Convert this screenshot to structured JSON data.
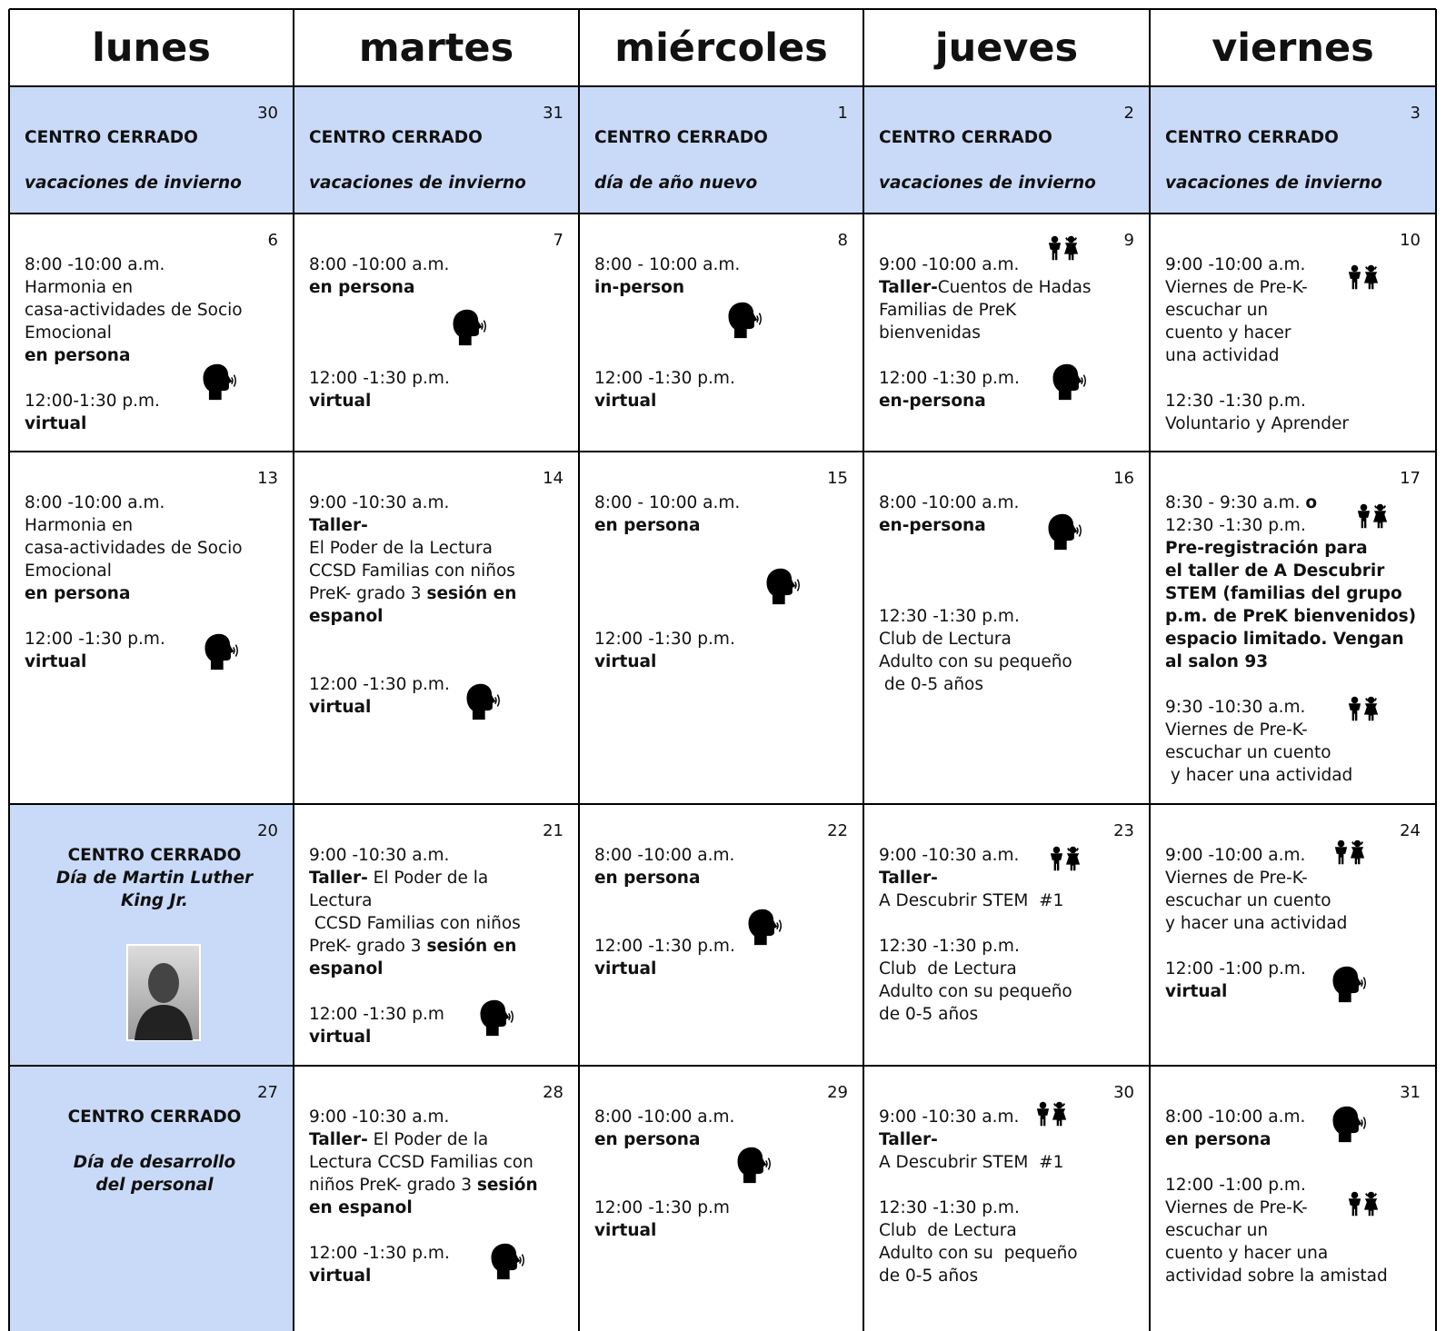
{
  "header": {
    "days": [
      "lunes",
      "martes",
      "miércoles",
      "jueves",
      "viernes"
    ]
  },
  "weeks": [
    {
      "cells": [
        {
          "date": "30",
          "fill": "#c9daf8",
          "blocks": [
            [
              [
                {
                  "text": "CENTRO CERRADO",
                  "bold": true
                }
              ]
            ],
            [
              [
                {
                  "text": "vacaciones de invierno",
                  "bold": true,
                  "italic": true
                }
              ]
            ]
          ]
        },
        {
          "date": "31",
          "fill": "#c9daf8",
          "blocks": [
            [
              [
                {
                  "text": "CENTRO CERRADO",
                  "bold": true
                }
              ]
            ],
            [
              [
                {
                  "text": "vacaciones de invierno",
                  "bold": true,
                  "italic": true
                }
              ]
            ]
          ]
        },
        {
          "date": "1",
          "fill": "#c9daf8",
          "blocks": [
            [
              [
                {
                  "text": "CENTRO CERRADO",
                  "bold": true
                }
              ]
            ],
            [
              [
                {
                  "text": "día de año nuevo",
                  "bold": true,
                  "italic": true
                }
              ]
            ]
          ]
        },
        {
          "date": "2",
          "fill": "#c9daf8",
          "blocks": [
            [
              [
                {
                  "text": "CENTRO CERRADO",
                  "bold": true
                }
              ]
            ],
            [
              [
                {
                  "text": "vacaciones de invierno",
                  "bold": true,
                  "italic": true
                }
              ]
            ]
          ]
        },
        {
          "date": "3",
          "fill": "#c9daf8",
          "blocks": [
            [
              [
                {
                  "text": "CENTRO CERRADO",
                  "bold": true
                }
              ]
            ],
            [
              [
                {
                  "text": "vacaciones de invierno",
                  "bold": true,
                  "italic": true
                }
              ]
            ]
          ]
        }
      ]
    },
    {
      "cells": [
        {
          "date": "6",
          "blocks": [
            [
              [
                "8:00 -10:00 a.m."
              ],
              [
                "Harmonia en"
              ],
              [
                "casa-actividades de Socio"
              ],
              [
                "Emocional"
              ],
              [
                {
                  "text": "en persona",
                  "bold": true
                }
              ]
            ],
            [
              [
                "12:00-1:30 p.m."
              ],
              [
                {
                  "text": "virtual",
                  "bold": true
                }
              ]
            ]
          ]
        },
        {
          "date": "7",
          "blocks": [
            [
              [
                "8:00 -10:00 a.m."
              ],
              [
                {
                  "text": "en persona",
                  "bold": true
                }
              ]
            ],
            [
              [
                "12:00 -1:30 p.m."
              ],
              [
                {
                  "text": "virtual",
                  "bold": true
                }
              ]
            ]
          ]
        },
        {
          "date": "8",
          "blocks": [
            [
              [
                "8:00 - 10:00 a.m."
              ],
              [
                {
                  "text": "in-person",
                  "bold": true
                }
              ]
            ],
            [
              [
                "12:00 -1:30 p.m."
              ],
              [
                {
                  "text": "virtual",
                  "bold": true
                }
              ]
            ]
          ]
        },
        {
          "date": "9",
          "blocks": [
            [
              [
                "9:00 -10:00 a.m."
              ],
              [
                {
                  "text": "Taller-",
                  "bold": true
                },
                "Cuentos de Hadas"
              ],
              [
                "Familias de PreK"
              ],
              [
                "bienvenidas"
              ]
            ],
            [
              [
                "12:00 -1:30 p.m."
              ],
              [
                {
                  "text": "en-persona",
                  "bold": true
                }
              ]
            ]
          ]
        },
        {
          "date": "10",
          "blocks": [
            [
              [
                "9:00 -10:00 a.m."
              ],
              [
                "Viernes de Pre-K-"
              ],
              [
                "escuchar un"
              ],
              [
                "cuento y hacer"
              ],
              [
                "una actividad"
              ]
            ],
            [
              [
                "12:30 -1:30 p.m."
              ],
              [
                "Voluntario y Aprender"
              ]
            ]
          ]
        }
      ]
    },
    {
      "cells": [
        {
          "date": "13",
          "blocks": [
            [
              [
                "8:00 -10:00 a.m."
              ],
              [
                "Harmonia en"
              ],
              [
                "casa-actividades de Socio"
              ],
              [
                "Emocional"
              ],
              [
                {
                  "text": "en persona",
                  "bold": true
                }
              ]
            ],
            [
              [
                "12:00 -1:30 p.m."
              ],
              [
                {
                  "text": "virtual",
                  "bold": true
                }
              ]
            ]
          ]
        },
        {
          "date": "14",
          "blocks": [
            [
              [
                "9:00 -10:30 a.m."
              ],
              [
                {
                  "text": "Taller-",
                  "bold": true
                }
              ],
              [
                "El Poder de la Lectura"
              ],
              [
                "CCSD Familias con niños"
              ],
              [
                "PreK- grado 3 ",
                {
                  "text": "sesión en",
                  "bold": true
                }
              ],
              [
                {
                  "text": "espanol",
                  "bold": true
                }
              ]
            ],
            [
              [
                "12:00 -1:30 p.m."
              ],
              [
                {
                  "text": "virtual",
                  "bold": true
                }
              ]
            ]
          ]
        },
        {
          "date": "15",
          "blocks": [
            [
              [
                "8:00 - 10:00 a.m."
              ],
              [
                {
                  "text": "en persona",
                  "bold": true
                }
              ]
            ],
            [
              [
                "12:00 -1:30 p.m."
              ],
              [
                {
                  "text": "virtual",
                  "bold": true
                }
              ]
            ]
          ]
        },
        {
          "date": "16",
          "blocks": [
            [
              [
                "8:00 -10:00 a.m."
              ],
              [
                {
                  "text": "en-persona",
                  "bold": true
                }
              ]
            ],
            [
              [
                "12:30 -1:30 p.m."
              ],
              [
                "Club de Lectura"
              ],
              [
                "Adulto con su pequeño"
              ],
              [
                " de 0-5 años"
              ]
            ]
          ]
        },
        {
          "date": "17",
          "blocks": [
            [
              [
                "8:30 - 9:30 a.m. ",
                {
                  "text": "o",
                  "bold": true
                }
              ],
              [
                "12:30 -1:30 p.m."
              ],
              [
                {
                  "text": "Pre-registración para",
                  "bold": true
                }
              ],
              [
                {
                  "text": "el taller de A Descubrir",
                  "bold": true
                }
              ],
              [
                {
                  "text": "STEM (familias del grupo",
                  "bold": true
                }
              ],
              [
                {
                  "text": "p.m. de PreK bienvenidos)",
                  "bold": true
                }
              ],
              [
                {
                  "text": "espacio limitado. Vengan",
                  "bold": true
                }
              ],
              [
                {
                  "text": "al salon 93",
                  "bold": true
                }
              ]
            ],
            [
              [
                "9:30 -10:30 a.m."
              ],
              [
                "Viernes de Pre-K-"
              ],
              [
                "escuchar un cuento"
              ],
              [
                " y hacer una actividad"
              ]
            ]
          ]
        }
      ]
    },
    {
      "cells": [
        {
          "date": "20",
          "fill": "#c9daf8",
          "blocks": [
            [
              [
                {
                  "text": "CENTRO CERRADO",
                  "bold": true
                }
              ],
              [
                {
                  "text": "Día de Martin Luther",
                  "bold": true,
                  "italic": true
                }
              ],
              [
                {
                  "text": "King Jr.",
                  "bold": true,
                  "italic": true
                }
              ]
            ]
          ]
        },
        {
          "date": "21",
          "blocks": [
            [
              [
                "9:00 -10:30 a.m."
              ],
              [
                {
                  "text": "Taller-",
                  "bold": true
                },
                " El Poder de la"
              ],
              [
                "Lectura"
              ],
              [
                " CCSD Familias con niños"
              ],
              [
                "PreK- grado 3 ",
                {
                  "text": "sesión en",
                  "bold": true
                }
              ],
              [
                {
                  "text": "espanol",
                  "bold": true
                }
              ]
            ],
            [
              [
                "12:00 -1:30 p.m"
              ],
              [
                {
                  "text": "virtual",
                  "bold": true
                }
              ]
            ]
          ]
        },
        {
          "date": "22",
          "blocks": [
            [
              [
                "8:00 -10:00 a.m."
              ],
              [
                {
                  "text": "en persona",
                  "bold": true
                }
              ]
            ],
            [
              [
                "12:00 -1:30 p.m."
              ],
              [
                {
                  "text": "virtual",
                  "bold": true
                }
              ]
            ]
          ]
        },
        {
          "date": "23",
          "blocks": [
            [
              [
                "9:00 -10:30 a.m."
              ],
              [
                {
                  "text": "Taller-",
                  "bold": true
                }
              ],
              [
                "A Descubrir STEM  #1"
              ]
            ],
            [
              [
                "12:30 -1:30 p.m."
              ],
              [
                "Club  de Lectura"
              ],
              [
                "Adulto con su pequeño"
              ],
              [
                "de 0-5 años"
              ]
            ]
          ]
        },
        {
          "date": "24",
          "blocks": [
            [
              [
                "9:00 -10:00 a.m."
              ],
              [
                "Viernes de Pre-K-"
              ],
              [
                "escuchar un cuento"
              ],
              [
                "y hacer una actividad"
              ]
            ],
            [
              [
                "12:00 -1:00 p.m."
              ],
              [
                {
                  "text": "virtual",
                  "bold": true
                }
              ]
            ]
          ]
        }
      ]
    },
    {
      "cells": [
        {
          "date": "27",
          "fill": "#c9daf8",
          "blocks": [
            [
              [
                {
                  "text": "CENTRO CERRADO",
                  "bold": true
                }
              ]
            ],
            [
              [
                {
                  "text": "Día de desarrollo",
                  "bold": true,
                  "italic": true
                }
              ],
              [
                {
                  "text": "del personal",
                  "bold": true,
                  "italic": true
                }
              ]
            ]
          ]
        },
        {
          "date": "28",
          "blocks": [
            [
              [
                "9:00 -10:30 a.m."
              ],
              [
                {
                  "text": "Taller-",
                  "bold": true
                },
                " El Poder de la"
              ],
              [
                "Lectura CCSD Familias con"
              ],
              [
                "niños PreK- grado 3 ",
                {
                  "text": "sesión",
                  "bold": true
                }
              ],
              [
                {
                  "text": "en espanol",
                  "bold": true
                }
              ]
            ],
            [
              [
                "12:00 -1:30 p.m."
              ],
              [
                {
                  "text": "virtual",
                  "bold": true
                }
              ]
            ]
          ]
        },
        {
          "date": "29",
          "blocks": [
            [
              [
                "8:00 -10:00 a.m."
              ],
              [
                {
                  "text": "en persona",
                  "bold": true
                }
              ]
            ],
            [
              [
                "12:00 -1:30 p.m"
              ],
              [
                {
                  "text": "virtual",
                  "bold": true
                }
              ]
            ]
          ]
        },
        {
          "date": "30",
          "blocks": [
            [
              [
                "9:00 -10:30 a.m."
              ],
              [
                {
                  "text": "Taller-",
                  "bold": true
                }
              ],
              [
                "A Descubrir STEM  #1"
              ]
            ],
            [
              [
                "12:30 -1:30 p.m."
              ],
              [
                "Club  de Lectura"
              ],
              [
                "Adulto con su  pequeño"
              ],
              [
                "de 0-5 años"
              ]
            ]
          ]
        },
        {
          "date": "31",
          "blocks": [
            [
              [
                "8:00 -10:00 a.m."
              ],
              [
                {
                  "text": "en persona",
                  "bold": true
                }
              ]
            ],
            [
              [
                "12:00 -1:00 p.m."
              ],
              [
                "Viernes de Pre-K-"
              ],
              [
                "escuchar un"
              ],
              [
                "cuento y hacer una"
              ],
              [
                "actividad sobre la amistad"
              ]
            ]
          ]
        }
      ]
    }
  ]
}
